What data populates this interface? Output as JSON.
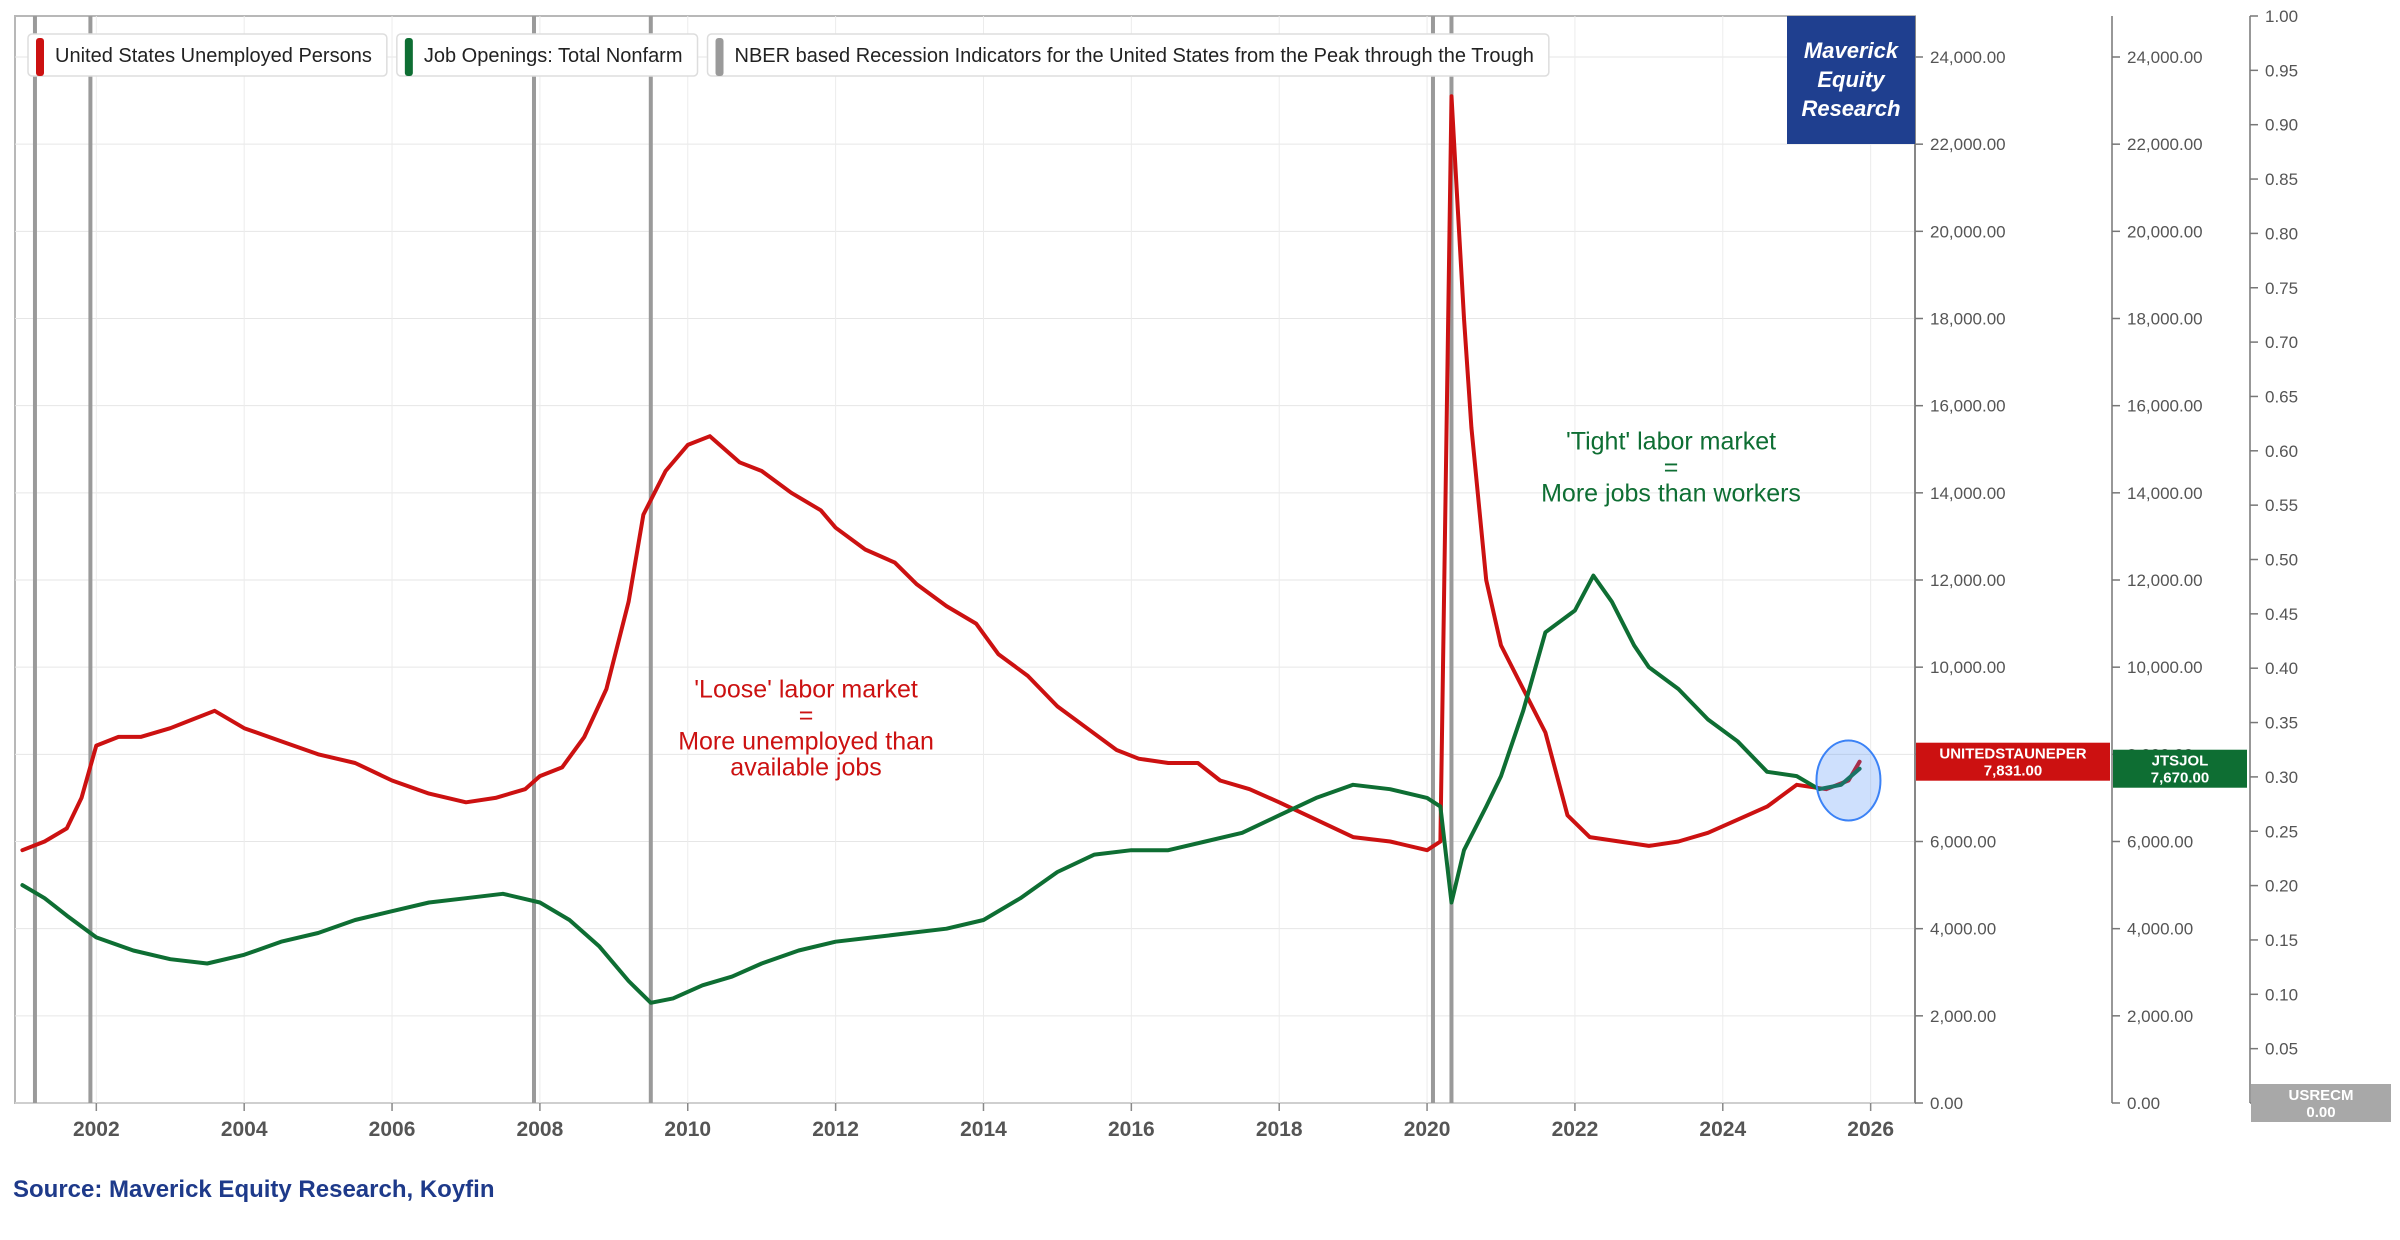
{
  "chart_data": {
    "type": "line",
    "x_ticks": [
      "2002",
      "2004",
      "2006",
      "2008",
      "2010",
      "2012",
      "2014",
      "2016",
      "2018",
      "2020",
      "2022",
      "2024",
      "2026"
    ],
    "x_range": [
      2000.9,
      2026.6
    ],
    "axes": [
      {
        "id": "UNITEDSTAUNEPER",
        "range": [
          0,
          25000
        ],
        "ticks": [
          "24,000.00",
          "22,000.00",
          "20,000.00",
          "18,000.00",
          "16,000.00",
          "14,000.00",
          "12,000.00",
          "10,000.00",
          "8,000.00",
          "6,000.00",
          "4,000.00",
          "2,000.00",
          "0.00"
        ]
      },
      {
        "id": "JTSJOL",
        "range": [
          0,
          25000
        ],
        "ticks": [
          "24,000.00",
          "22,000.00",
          "20,000.00",
          "18,000.00",
          "16,000.00",
          "14,000.00",
          "12,000.00",
          "10,000.00",
          "8,000.00",
          "6,000.00",
          "4,000.00",
          "2,000.00",
          "0.00"
        ]
      },
      {
        "id": "USRECM",
        "range": [
          0,
          1.0
        ],
        "ticks": [
          "1.00",
          "0.95",
          "0.90",
          "0.85",
          "0.80",
          "0.75",
          "0.70",
          "0.65",
          "0.60",
          "0.55",
          "0.50",
          "0.45",
          "0.40",
          "0.35",
          "0.30",
          "0.25",
          "0.20",
          "0.15",
          "0.10",
          "0.05",
          "0.00"
        ]
      }
    ],
    "legend": [
      {
        "label": "United States Unemployed Persons",
        "color": "#cc1111"
      },
      {
        "label": "Job Openings: Total Nonfarm",
        "color": "#0e6e33"
      },
      {
        "label": "NBER based Recession Indicators for the United States from the Peak through the Trough",
        "color": "#9a9a9a"
      }
    ],
    "series": [
      {
        "name": "United States Unemployed Persons",
        "axis": "UNITEDSTAUNEPER",
        "color": "#cc1111",
        "x": [
          2001.0,
          2001.3,
          2001.6,
          2001.8,
          2002.0,
          2002.3,
          2002.6,
          2003.0,
          2003.3,
          2003.6,
          2004.0,
          2004.5,
          2005.0,
          2005.5,
          2006.0,
          2006.5,
          2007.0,
          2007.4,
          2007.8,
          2008.0,
          2008.3,
          2008.6,
          2008.9,
          2009.2,
          2009.4,
          2009.7,
          2010.0,
          2010.3,
          2010.7,
          2011.0,
          2011.4,
          2011.8,
          2012.0,
          2012.4,
          2012.8,
          2013.1,
          2013.5,
          2013.9,
          2014.2,
          2014.6,
          2015.0,
          2015.4,
          2015.8,
          2016.1,
          2016.5,
          2016.9,
          2017.2,
          2017.6,
          2018.0,
          2018.5,
          2019.0,
          2019.5,
          2020.0,
          2020.18,
          2020.33,
          2020.4,
          2020.5,
          2020.6,
          2020.8,
          2021.0,
          2021.3,
          2021.6,
          2021.9,
          2022.2,
          2022.6,
          2023.0,
          2023.4,
          2023.8,
          2024.2,
          2024.6,
          2025.0,
          2025.4,
          2025.7,
          2025.85
        ],
        "values": [
          5800,
          6000,
          6300,
          7000,
          8200,
          8400,
          8400,
          8600,
          8800,
          9000,
          8600,
          8300,
          8000,
          7800,
          7400,
          7100,
          6900,
          7000,
          7200,
          7500,
          7700,
          8400,
          9500,
          11500,
          13500,
          14500,
          15100,
          15300,
          14700,
          14500,
          14000,
          13600,
          13200,
          12700,
          12400,
          11900,
          11400,
          11000,
          10300,
          9800,
          9100,
          8600,
          8100,
          7900,
          7800,
          7800,
          7400,
          7200,
          6900,
          6500,
          6100,
          6000,
          5800,
          6000,
          23100,
          21000,
          18000,
          15500,
          12000,
          10500,
          9500,
          8500,
          6600,
          6100,
          6000,
          5900,
          6000,
          6200,
          6500,
          6800,
          7300,
          7200,
          7400,
          7831
        ]
      },
      {
        "name": "Job Openings: Total Nonfarm",
        "axis": "JTSJOL",
        "color": "#0e6e33",
        "x": [
          2001.0,
          2001.3,
          2001.6,
          2002.0,
          2002.5,
          2003.0,
          2003.5,
          2004.0,
          2004.5,
          2005.0,
          2005.5,
          2006.0,
          2006.5,
          2007.0,
          2007.5,
          2008.0,
          2008.4,
          2008.8,
          2009.2,
          2009.5,
          2009.8,
          2010.2,
          2010.6,
          2011.0,
          2011.5,
          2012.0,
          2012.5,
          2013.0,
          2013.5,
          2014.0,
          2014.5,
          2015.0,
          2015.5,
          2016.0,
          2016.5,
          2017.0,
          2017.5,
          2018.0,
          2018.5,
          2019.0,
          2019.5,
          2020.0,
          2020.18,
          2020.33,
          2020.5,
          2020.8,
          2021.0,
          2021.3,
          2021.6,
          2022.0,
          2022.25,
          2022.5,
          2022.8,
          2023.0,
          2023.4,
          2023.8,
          2024.2,
          2024.6,
          2025.0,
          2025.3,
          2025.6,
          2025.85
        ],
        "values": [
          5000,
          4700,
          4300,
          3800,
          3500,
          3300,
          3200,
          3400,
          3700,
          3900,
          4200,
          4400,
          4600,
          4700,
          4800,
          4600,
          4200,
          3600,
          2800,
          2300,
          2400,
          2700,
          2900,
          3200,
          3500,
          3700,
          3800,
          3900,
          4000,
          4200,
          4700,
          5300,
          5700,
          5800,
          5800,
          6000,
          6200,
          6600,
          7000,
          7300,
          7200,
          7000,
          6800,
          4600,
          5800,
          6800,
          7500,
          9000,
          10800,
          11300,
          12100,
          11500,
          10500,
          10000,
          9500,
          8800,
          8300,
          7600,
          7500,
          7200,
          7300,
          7670
        ]
      },
      {
        "name": "NBER based Recession Indicators for the United States from the Peak through the Trough",
        "axis": "USRECM",
        "color": "#9a9a9a",
        "periods": [
          [
            2001.17,
            2001.92
          ],
          [
            2007.92,
            2009.5
          ],
          [
            2020.08,
            2020.33
          ]
        ]
      }
    ],
    "end_labels": [
      {
        "name": "UNITEDSTAUNEPER",
        "value": "7,831.00",
        "color": "#cc1111"
      },
      {
        "name": "JTSJOL",
        "value": "7,670.00",
        "color": "#0e6e33"
      },
      {
        "name": "USRECM",
        "value": "0.00",
        "color": "#a8a8a8"
      }
    ],
    "annotations": [
      {
        "lines": [
          "'Loose' labor market",
          "=",
          "More unemployed than",
          "available jobs"
        ],
        "color": "#cc1111",
        "x": 2011.6,
        "y": 9300
      },
      {
        "lines": [
          "'Tight' labor market",
          "=",
          "More jobs than workers"
        ],
        "color": "#0e6e33",
        "x": 2023.3,
        "y": 15000
      }
    ],
    "highlight": {
      "x": 2025.7,
      "y": 7400,
      "color": "#3b82f6"
    },
    "grid": true,
    "legend_position": "top-left"
  },
  "logo": {
    "lines": [
      "Maverick",
      "Equity",
      "Research"
    ],
    "color": "#1f3f8f"
  },
  "source": "Source: Maverick Equity Research, Koyfin"
}
